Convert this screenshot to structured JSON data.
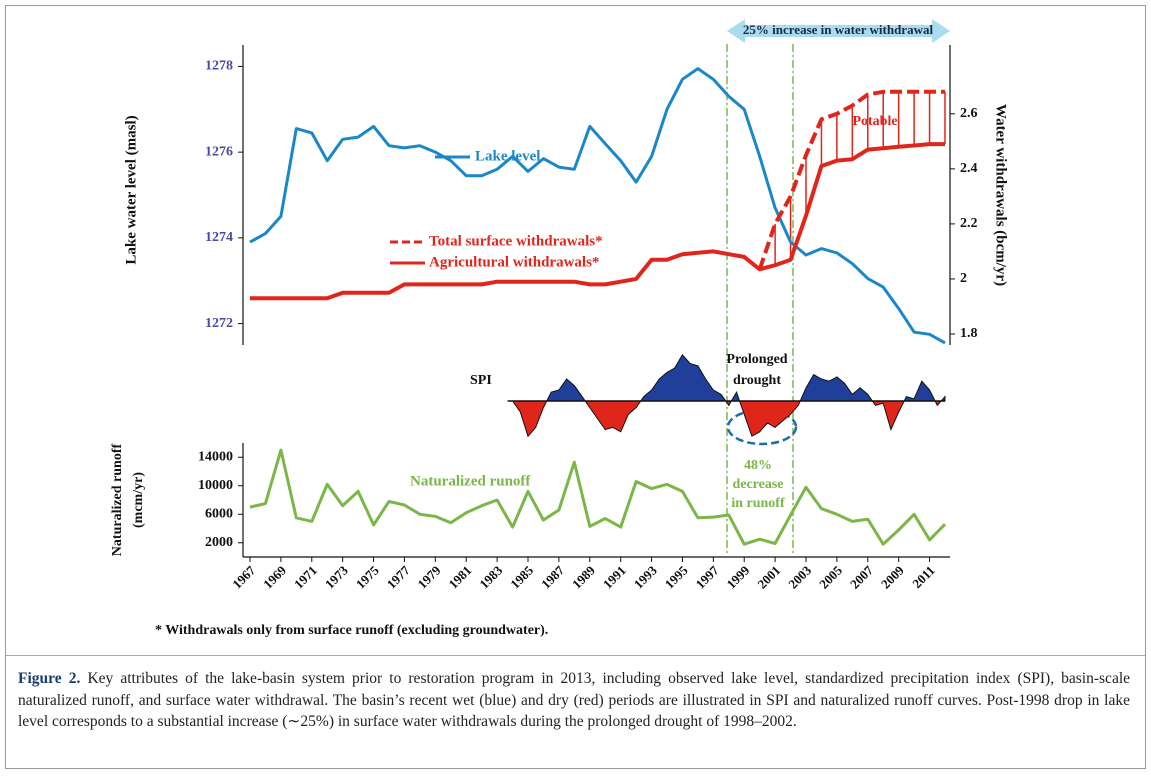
{
  "chart_data": [
    {
      "type": "line",
      "x": [
        1967,
        1968,
        1969,
        1970,
        1971,
        1972,
        1973,
        1974,
        1975,
        1976,
        1977,
        1978,
        1979,
        1980,
        1981,
        1982,
        1983,
        1984,
        1985,
        1986,
        1987,
        1988,
        1989,
        1990,
        1991,
        1992,
        1993,
        1994,
        1995,
        1996,
        1997,
        1998,
        1999,
        2000,
        2001,
        2002,
        2003,
        2004,
        2005,
        2006,
        2007,
        2008,
        2009,
        2010,
        2011,
        2012
      ],
      "xlim": [
        1967,
        2012
      ],
      "ylabel": "Lake water level (masl)",
      "ylim": [
        1271.5,
        1278.5
      ],
      "yticks": [
        1272,
        1274,
        1276,
        1278
      ],
      "y2label": "Water withdrawals (bcm/yr)",
      "y2lim": [
        1.76,
        2.85
      ],
      "y2ticks": [
        1.8,
        2,
        2.2,
        2.4,
        2.6
      ],
      "series": [
        {
          "name": "Lake level",
          "color": "#1b87c9",
          "axis": "y",
          "values": [
            1273.9,
            1274.1,
            1274.5,
            1276.55,
            1276.45,
            1275.8,
            1276.3,
            1276.35,
            1276.6,
            1276.15,
            1276.1,
            1276.15,
            1276.0,
            1275.8,
            1275.45,
            1275.45,
            1275.6,
            1275.9,
            1275.55,
            1275.85,
            1275.65,
            1275.6,
            1276.6,
            1276.2,
            1275.8,
            1275.3,
            1275.9,
            1277.0,
            1277.7,
            1277.95,
            1277.7,
            1277.3,
            1277.0,
            1275.9,
            1274.7,
            1273.9,
            1273.6,
            1273.75,
            1273.65,
            1273.4,
            1273.05,
            1272.85,
            1272.35,
            1271.8,
            1271.75,
            1271.55
          ]
        },
        {
          "name": "Total surface withdrawals*",
          "color": "#e0251b",
          "axis": "y2",
          "dashed": true,
          "values": [
            null,
            null,
            null,
            null,
            null,
            null,
            null,
            null,
            null,
            null,
            null,
            null,
            null,
            null,
            null,
            null,
            null,
            null,
            null,
            null,
            null,
            null,
            null,
            null,
            null,
            null,
            null,
            null,
            null,
            null,
            null,
            null,
            null,
            2.035,
            2.2,
            2.3,
            2.45,
            2.58,
            2.6,
            2.63,
            2.67,
            2.68,
            2.68,
            2.68,
            2.68,
            2.68
          ]
        },
        {
          "name": "Agricultural withdrawals*",
          "color": "#e0251b",
          "axis": "y2",
          "values": [
            1.93,
            1.93,
            1.93,
            1.93,
            1.93,
            1.93,
            1.95,
            1.95,
            1.95,
            1.95,
            1.98,
            1.98,
            1.98,
            1.98,
            1.98,
            1.98,
            1.99,
            1.99,
            1.99,
            1.99,
            1.99,
            1.99,
            1.98,
            1.98,
            1.99,
            2.0,
            2.07,
            2.07,
            2.09,
            2.095,
            2.1,
            2.09,
            2.08,
            2.035,
            2.05,
            2.07,
            2.23,
            2.41,
            2.43,
            2.435,
            2.47,
            2.475,
            2.48,
            2.485,
            2.49,
            2.49
          ]
        }
      ]
    },
    {
      "type": "area",
      "title": "SPI",
      "x": [
        1984,
        1984.5,
        1985,
        1985.5,
        1986,
        1986.5,
        1987,
        1987.5,
        1988,
        1988.5,
        1989,
        1989.5,
        1990,
        1990.5,
        1991,
        1991.5,
        1992,
        1992.5,
        1993,
        1993.5,
        1994,
        1994.5,
        1995,
        1995.5,
        1996,
        1996.5,
        1997,
        1997.5,
        1998,
        1998.5,
        1999,
        1999.5,
        2000,
        2000.5,
        2001,
        2001.5,
        2002,
        2002.5,
        2003,
        2003.5,
        2004,
        2004.5,
        2005,
        2005.5,
        2006,
        2006.5,
        2007,
        2007.5,
        2008,
        2008.5,
        2009,
        2009.5,
        2010,
        2010.5,
        2011,
        2011.5,
        2012
      ],
      "values": [
        0,
        -0.5,
        -1.6,
        -1.2,
        -0.3,
        0.4,
        0.5,
        1.0,
        0.7,
        0.2,
        -0.3,
        -0.8,
        -1.3,
        -1.2,
        -1.4,
        -0.6,
        -0.3,
        0.2,
        0.5,
        1.0,
        1.3,
        1.5,
        2.1,
        1.7,
        1.6,
        1.0,
        0.5,
        0.3,
        -0.2,
        0.4,
        -0.6,
        -1.6,
        -1.4,
        -1.0,
        -1.2,
        -0.9,
        -0.6,
        -0.2,
        0.6,
        1.2,
        1.0,
        0.9,
        1.1,
        0.8,
        0.3,
        0.6,
        0.3,
        -0.2,
        -0.1,
        -1.3,
        -0.5,
        0.2,
        0.1,
        0.9,
        0.5,
        -0.2,
        0.2
      ],
      "xlim": [
        1967,
        2012
      ],
      "ylim": [
        -2.5,
        2.5
      ],
      "positive_color": "#1f3f9a",
      "negative_color": "#e0251b"
    },
    {
      "type": "line",
      "x": [
        1967,
        1968,
        1969,
        1970,
        1971,
        1972,
        1973,
        1974,
        1975,
        1976,
        1977,
        1978,
        1979,
        1980,
        1981,
        1982,
        1983,
        1984,
        1985,
        1986,
        1987,
        1988,
        1989,
        1990,
        1991,
        1992,
        1993,
        1994,
        1995,
        1996,
        1997,
        1998,
        1999,
        2000,
        2001,
        2002,
        2003,
        2004,
        2005,
        2006,
        2007,
        2008,
        2009,
        2010,
        2011,
        2012
      ],
      "xlim": [
        1967,
        2012
      ],
      "xticks": [
        1967,
        1969,
        1971,
        1973,
        1975,
        1977,
        1979,
        1981,
        1983,
        1985,
        1987,
        1989,
        1991,
        1993,
        1995,
        1997,
        1999,
        2001,
        2003,
        2005,
        2007,
        2009,
        2011
      ],
      "ylabel": [
        "Naturalized runoff",
        "(mcm/yr)"
      ],
      "ylim": [
        0,
        16000
      ],
      "yticks": [
        2000,
        6000,
        10000,
        14000
      ],
      "series": [
        {
          "name": "Naturalized runoff",
          "color": "#7ab648",
          "values": [
            7000,
            7500,
            15000,
            5500,
            5000,
            10200,
            7200,
            9200,
            4500,
            7800,
            7300,
            6000,
            5700,
            4800,
            6200,
            7200,
            8000,
            4200,
            9200,
            5200,
            6600,
            13300,
            4300,
            5400,
            4200,
            10600,
            9600,
            10200,
            9200,
            5500,
            5600,
            5900,
            1800,
            2500,
            1900,
            5900,
            9800,
            6800,
            6000,
            5000,
            5300,
            1800,
            3800,
            6000,
            2400,
            4600
          ]
        }
      ]
    }
  ],
  "annotations": {
    "increase": "25% increase in water withdrawal",
    "potable": "Potable",
    "drought": [
      "Prolonged",
      "drought"
    ],
    "decrease": [
      "48%",
      "decrease",
      "in runoff"
    ]
  },
  "footnote": "* Withdrawals only from surface runoff (excluding groundwater).",
  "caption_label": "Figure 2.",
  "caption": "Key attributes of the lake-basin system prior to restoration program in 2013, including observed lake level, standardized precipitation index (SPI), basin-scale naturalized runoff, and surface water withdrawal. The basin’s recent wet (blue) and dry (red) periods are illustrated in SPI and naturalized runoff curves. Post-1998 drop in lake level corresponds to a substantial increase (∼25%) in surface water withdrawals during the prolonged drought of 1998–2002."
}
